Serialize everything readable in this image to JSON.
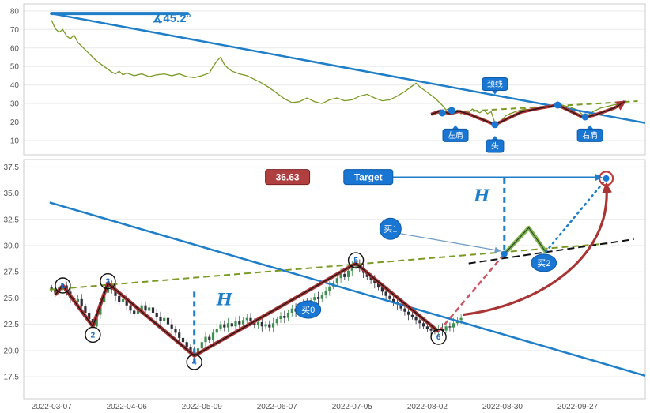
{
  "colors": {
    "blue": "#1e7ec8",
    "label_blue": "#1976d2",
    "label_blue_border": "#0d5aa8",
    "green_line": "#7a9a23",
    "dark_red": "#a93434",
    "maroon_box": "#b04040",
    "maroon_border": "#7c2020",
    "green_seg": "#7ab648",
    "proj_dash": "#cc5566",
    "grid": "#e9e9e9",
    "panel_border": "#cccccc",
    "tick_text": "#555555",
    "candle_up": "#3f8f4f",
    "candle_down": "#2e2e3a",
    "circle_num": "#1a66c0",
    "target_ring": "#c23b3b"
  },
  "chart_data": [
    {
      "type": "line",
      "panel": "top",
      "px": {
        "x": [
          30,
          816
        ],
        "y": [
          196,
          5
        ]
      },
      "xlim": [
        -7.4,
        158
      ],
      "ylim": [
        2.3,
        83.8
      ],
      "yticks": [
        10,
        20,
        30,
        40,
        50,
        60,
        70,
        80
      ],
      "price_line": [
        [
          0,
          75
        ],
        [
          1,
          70.5
        ],
        [
          2,
          68.5
        ],
        [
          3,
          70
        ],
        [
          4,
          66.5
        ],
        [
          5,
          65
        ],
        [
          6,
          67
        ],
        [
          7,
          63
        ],
        [
          8,
          61
        ],
        [
          9,
          59
        ],
        [
          10,
          57
        ],
        [
          11,
          55
        ],
        [
          12,
          53
        ],
        [
          13,
          51.5
        ],
        [
          14,
          50
        ],
        [
          15,
          48.5
        ],
        [
          16,
          47
        ],
        [
          17,
          46
        ],
        [
          18,
          47.5
        ],
        [
          19,
          45.5
        ],
        [
          20,
          46.5
        ],
        [
          22,
          45
        ],
        [
          24,
          46
        ],
        [
          26,
          44.5
        ],
        [
          28,
          45.5
        ],
        [
          30,
          46
        ],
        [
          32,
          45
        ],
        [
          34,
          46
        ],
        [
          36,
          44.5
        ],
        [
          38,
          44
        ],
        [
          40,
          45
        ],
        [
          42,
          46.5
        ],
        [
          43,
          50
        ],
        [
          44,
          53
        ],
        [
          45,
          55
        ],
        [
          46,
          51
        ],
        [
          47,
          49
        ],
        [
          48,
          47.5
        ],
        [
          50,
          46
        ],
        [
          52,
          45
        ],
        [
          54,
          43
        ],
        [
          56,
          41
        ],
        [
          58,
          38.5
        ],
        [
          60,
          35.5
        ],
        [
          62,
          32.5
        ],
        [
          64,
          30.5
        ],
        [
          66,
          31
        ],
        [
          68,
          33
        ],
        [
          70,
          31
        ],
        [
          72,
          30
        ],
        [
          74,
          32
        ],
        [
          76,
          33
        ],
        [
          78,
          31.5
        ],
        [
          80,
          32
        ],
        [
          82,
          34
        ],
        [
          84,
          35
        ],
        [
          86,
          33
        ],
        [
          88,
          31.5
        ],
        [
          90,
          32
        ],
        [
          92,
          34
        ],
        [
          94,
          36.5
        ],
        [
          96,
          39.5
        ],
        [
          97,
          41
        ],
        [
          98,
          39
        ],
        [
          100,
          36
        ],
        [
          102,
          33
        ],
        [
          104,
          29
        ],
        [
          105,
          26.5
        ],
        [
          106,
          27.5
        ],
        [
          107,
          25.5
        ],
        [
          108,
          26.5
        ],
        [
          109,
          24.5
        ],
        [
          110,
          26
        ],
        [
          111,
          25
        ],
        [
          112,
          27
        ],
        [
          113,
          26
        ],
        [
          114,
          25
        ],
        [
          115,
          26.5
        ],
        [
          116,
          24.5
        ],
        [
          117,
          25.5
        ],
        [
          118,
          19.5
        ],
        [
          119,
          19
        ],
        [
          120,
          21.5
        ],
        [
          121,
          23.5
        ],
        [
          122,
          24.5
        ],
        [
          124,
          26
        ],
        [
          126,
          27
        ],
        [
          128,
          26
        ],
        [
          130,
          27.5
        ],
        [
          132,
          28.5
        ],
        [
          134,
          29.5
        ],
        [
          135,
          30.5
        ],
        [
          136,
          29
        ],
        [
          138,
          28
        ],
        [
          140,
          26.5
        ],
        [
          141,
          24.5
        ],
        [
          142,
          23
        ],
        [
          143,
          24
        ],
        [
          144,
          25.5
        ],
        [
          145,
          26.5
        ],
        [
          146,
          27.5
        ],
        [
          148,
          28.5
        ],
        [
          150,
          29.5
        ],
        [
          152,
          29
        ]
      ],
      "trendline": [
        [
          0,
          78.6
        ],
        [
          158,
          19.5
        ]
      ],
      "horizontal_line": [
        [
          0,
          78.6
        ],
        [
          36.2,
          78.6
        ]
      ],
      "angle_label": {
        "text": "∡45.2°",
        "x": 32,
        "y": 74
      },
      "zigzag": [
        [
          101,
          24.2
        ],
        [
          103.5,
          26.0
        ],
        [
          106,
          24.5
        ],
        [
          108.5,
          25.8
        ],
        [
          111,
          24.3
        ],
        [
          118,
          18.6
        ],
        [
          125,
          25.4
        ],
        [
          130,
          27.5
        ],
        [
          134.7,
          29.2
        ],
        [
          141.5,
          22.5
        ],
        [
          144,
          23.5
        ],
        [
          147,
          25.5
        ],
        [
          150,
          27.8
        ],
        [
          152.5,
          31.0
        ]
      ],
      "neckline": [
        [
          102,
          24.8
        ],
        [
          156,
          31.3
        ]
      ],
      "dots": [
        [
          104,
          24.9
        ],
        [
          106.5,
          26.2
        ],
        [
          118,
          18.6
        ],
        [
          134.7,
          29.2
        ],
        [
          142,
          22.8
        ]
      ],
      "labels": [
        {
          "text": "左肩",
          "x": 107.5,
          "y": 12.8,
          "pointer": "up",
          "w": 32
        },
        {
          "text": "头",
          "x": 118,
          "y": 7,
          "pointer": "up",
          "w": 22
        },
        {
          "text": "右肩",
          "x": 143.3,
          "y": 12.8,
          "pointer": "up",
          "w": 32
        },
        {
          "text": "颈线",
          "x": 118,
          "y": 40.5,
          "pointer": "down",
          "w": 32
        }
      ]
    },
    {
      "type": "candlestick",
      "panel": "bottom",
      "px": {
        "x": [
          30,
          816
        ],
        "y": [
          505,
          202
        ]
      },
      "xlim": [
        -7.4,
        158
      ],
      "ylim": [
        15.4,
        38.2
      ],
      "yticks": [
        17.5,
        20.0,
        22.5,
        25.0,
        27.5,
        30.0,
        32.5,
        35.0,
        37.5
      ],
      "xticks": {
        "idx": [
          0,
          20,
          40,
          60,
          80,
          100,
          120,
          140
        ],
        "labels": [
          "2022-03-07",
          "2022-04-06",
          "2022-05-09",
          "2022-06-07",
          "2022-07-05",
          "2022-08-02",
          "2022-08-30",
          "2022-09-27"
        ]
      },
      "closes": [
        25.8,
        25.5,
        26.0,
        26.2,
        25.6,
        25.0,
        24.6,
        24.9,
        24.2,
        23.6,
        23.0,
        22.3,
        23.4,
        24.6,
        25.5,
        26.3,
        25.8,
        25.2,
        24.6,
        24.9,
        24.3,
        23.8,
        23.5,
        23.9,
        24.3,
        23.8,
        24.1,
        23.6,
        23.2,
        22.8,
        23.1,
        22.5,
        22.1,
        21.7,
        21.2,
        20.8,
        20.3,
        19.9,
        19.6,
        20.2,
        20.8,
        21.3,
        21.0,
        21.7,
        22.1,
        22.5,
        22.2,
        22.6,
        22.3,
        22.8,
        22.5,
        22.9,
        23.1,
        22.8,
        22.4,
        22.7,
        22.3,
        22.5,
        22.2,
        22.6,
        23.0,
        23.3,
        23.1,
        23.6,
        24.0,
        23.7,
        24.2,
        24.5,
        24.3,
        24.8,
        25.1,
        24.9,
        25.3,
        25.7,
        26.1,
        26.4,
        26.9,
        27.3,
        27.0,
        27.6,
        28.0,
        28.3,
        27.8,
        27.4,
        27.0,
        26.7,
        26.4,
        26.0,
        25.6,
        25.2,
        24.9,
        24.6,
        24.4,
        24.0,
        23.7,
        23.4,
        23.2,
        22.9,
        22.6,
        22.3,
        22.1,
        21.9,
        21.8,
        22.1,
        21.9,
        22.3,
        22.2,
        22.6,
        22.9,
        23.1
      ],
      "trendline": [
        [
          -0.5,
          34.1
        ],
        [
          158,
          17.6
        ]
      ],
      "neckline": [
        [
          -0.5,
          25.8
        ],
        [
          148,
          30.2
        ]
      ],
      "breakout_line": [
        [
          111,
          28.3
        ],
        [
          155,
          30.6
        ]
      ],
      "wave": [
        [
          1,
          25.3
        ],
        [
          3,
          26.2
        ],
        [
          11,
          22.3
        ],
        [
          15,
          26.4
        ],
        [
          38,
          19.5
        ],
        [
          81,
          28.3
        ],
        [
          103,
          21.8
        ]
      ],
      "wave_points": [
        {
          "n": "1",
          "x": 3,
          "y": 26.2
        },
        {
          "n": "2",
          "x": 11,
          "y": 21.5
        },
        {
          "n": "3",
          "x": 15,
          "y": 26.6
        },
        {
          "n": "4",
          "x": 38,
          "y": 18.9
        },
        {
          "n": "5",
          "x": 81,
          "y": 28.6
        },
        {
          "n": "6",
          "x": 103,
          "y": 21.3
        }
      ],
      "proj_dashed": [
        [
          103,
          21.8
        ],
        [
          120.5,
          29.2
        ]
      ],
      "proj_green": [
        [
          120.5,
          29.2
        ],
        [
          127,
          31.7
        ],
        [
          131.5,
          29.4
        ]
      ],
      "proj_dotted": [
        [
          131.5,
          29.4
        ],
        [
          147.5,
          36.3
        ]
      ],
      "vlines": [
        {
          "x": 38,
          "y1": 25.6,
          "y2": 18.8
        },
        {
          "x": 120.5,
          "y1": 36.4,
          "y2": 29.2
        }
      ],
      "h_labels": [
        {
          "text": "H",
          "x": 46,
          "y": 24.3
        },
        {
          "text": "H",
          "x": 114.5,
          "y": 34.2
        }
      ],
      "target_price": {
        "text": "36.63",
        "x": 62.8,
        "y": 36.5
      },
      "target_label": {
        "text": "Target",
        "x": 84.3,
        "y": 36.5
      },
      "target_arrow": [
        [
          90.8,
          36.5
        ],
        [
          146.2,
          36.5
        ]
      ],
      "target_marker": {
        "x": 147.6,
        "y": 36.4
      },
      "breakout_dot": {
        "x": 120.5,
        "y": 29.2
      },
      "buy_labels": [
        {
          "text": "买0",
          "x": 68.3,
          "y": 23.9,
          "shape": "ellipse"
        },
        {
          "text": "买1",
          "x": 90.2,
          "y": 31.6,
          "shape": "circle",
          "arrow_to": [
            119.3,
            29.5
          ]
        },
        {
          "text": "买2",
          "x": 131,
          "y": 28.35,
          "shape": "ellipse"
        }
      ],
      "curve_arrow": {
        "from": [
          109.4,
          23.4
        ],
        "c1": [
          131.5,
          24.4
        ],
        "c2": [
          149.4,
          29.3
        ],
        "to": [
          147.6,
          35.8
        ]
      }
    }
  ]
}
